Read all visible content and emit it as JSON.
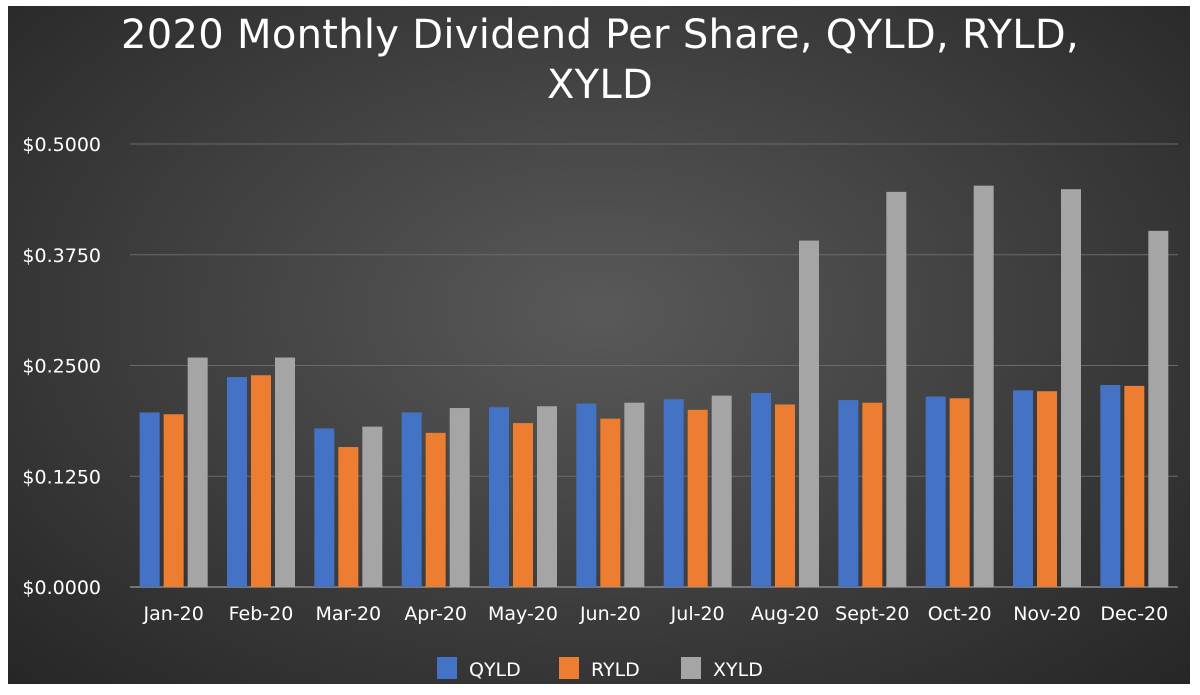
{
  "chart_data": {
    "type": "bar",
    "title_lines": [
      "2020 Monthly Dividend Per Share, QYLD, RYLD,",
      "XYLD"
    ],
    "categories": [
      "Jan-20",
      "Feb-20",
      "Mar-20",
      "Apr-20",
      "May-20",
      "Jun-20",
      "Jul-20",
      "Aug-20",
      "Sept-20",
      "Oct-20",
      "Nov-20",
      "Dec-20"
    ],
    "series": [
      {
        "name": "QYLD",
        "color": "#4472C4",
        "values": [
          0.197,
          0.237,
          0.179,
          0.197,
          0.203,
          0.207,
          0.212,
          0.219,
          0.211,
          0.215,
          0.222,
          0.228
        ]
      },
      {
        "name": "RYLD",
        "color": "#ED7D31",
        "values": [
          0.195,
          0.239,
          0.158,
          0.174,
          0.185,
          0.19,
          0.2,
          0.206,
          0.208,
          0.213,
          0.221,
          0.227
        ]
      },
      {
        "name": "XYLD",
        "color": "#A5A5A5",
        "values": [
          0.259,
          0.259,
          0.181,
          0.202,
          0.204,
          0.208,
          0.216,
          0.391,
          0.446,
          0.453,
          0.449,
          0.402
        ]
      }
    ],
    "yticks": [
      "$0.0000",
      "$0.1250",
      "$0.2500",
      "$0.3750",
      "$0.5000"
    ],
    "ylim": [
      0,
      0.5
    ],
    "grid": true,
    "legend_position": "bottom"
  }
}
